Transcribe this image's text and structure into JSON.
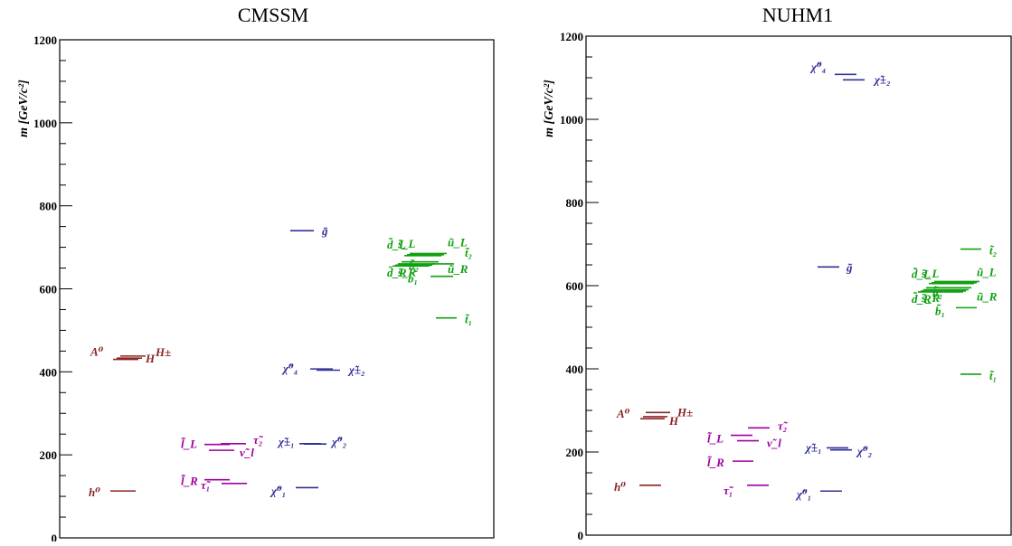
{
  "colors": {
    "higgs": "#8b2525",
    "slepton": "#a000a0",
    "gaugino": "#30309a",
    "squark": "#10a010",
    "axis": "#000000"
  },
  "chart_data": [
    {
      "type": "mass-spectrum",
      "title": "CMSSM",
      "ylabel": "m [GeV/c²]",
      "ylim": [
        0,
        1200
      ],
      "yticks": [
        "0",
        "200",
        "400",
        "600",
        "800",
        "1000",
        "1200"
      ],
      "particles": [
        {
          "label": "h⁰",
          "group": "higgs",
          "mass": 113
        },
        {
          "label": "A⁰",
          "group": "higgs",
          "mass": 430
        },
        {
          "label": "H",
          "group": "higgs",
          "mass": 433
        },
        {
          "label": "H±",
          "group": "higgs",
          "mass": 438
        },
        {
          "label": "l̃_R",
          "group": "slepton",
          "mass": 140
        },
        {
          "label": "τ̃₁",
          "group": "slepton",
          "mass": 131
        },
        {
          "label": "l̃_L",
          "group": "slepton",
          "mass": 225
        },
        {
          "label": "ν̃_l",
          "group": "slepton",
          "mass": 211
        },
        {
          "label": "τ̃₂",
          "group": "slepton",
          "mass": 227
        },
        {
          "label": "χ̃⁰₁",
          "group": "gaugino",
          "mass": 121
        },
        {
          "label": "χ̃±₁",
          "group": "gaugino",
          "mass": 227
        },
        {
          "label": "χ̃⁰₂",
          "group": "gaugino",
          "mass": 226
        },
        {
          "label": "χ̃⁰₄",
          "group": "gaugino",
          "mass": 407
        },
        {
          "label": "χ̃±₂",
          "group": "gaugino",
          "mass": 404
        },
        {
          "label": "g̃",
          "group": "gaugino",
          "mass": 740
        },
        {
          "label": "t̃₁",
          "group": "squark",
          "mass": 530
        },
        {
          "label": "b̃₁",
          "group": "squark",
          "mass": 630
        },
        {
          "label": "t̃₂",
          "group": "squark",
          "mass": 660
        },
        {
          "label": "d̃_R",
          "group": "squark",
          "mass": 655
        },
        {
          "label": "s̃_R",
          "group": "squark",
          "mass": 657
        },
        {
          "label": "ũ_R",
          "group": "squark",
          "mass": 660
        },
        {
          "label": "b̃₂",
          "group": "squark",
          "mass": 665
        },
        {
          "label": "d̃_L",
          "group": "squark",
          "mass": 680
        },
        {
          "label": "s̃_L",
          "group": "squark",
          "mass": 682
        },
        {
          "label": "ũ_L",
          "group": "squark",
          "mass": 685
        }
      ]
    },
    {
      "type": "mass-spectrum",
      "title": "NUHM1",
      "ylabel": "m [GeV/c²]",
      "ylim": [
        0,
        1200
      ],
      "yticks": [
        "0",
        "200",
        "400",
        "600",
        "800",
        "1000",
        "1200"
      ],
      "particles": [
        {
          "label": "h⁰",
          "group": "higgs",
          "mass": 120
        },
        {
          "label": "A⁰",
          "group": "higgs",
          "mass": 280
        },
        {
          "label": "H",
          "group": "higgs",
          "mass": 285
        },
        {
          "label": "H±",
          "group": "higgs",
          "mass": 295
        },
        {
          "label": "τ̃₁",
          "group": "slepton",
          "mass": 120
        },
        {
          "label": "l̃_R",
          "group": "slepton",
          "mass": 178
        },
        {
          "label": "l̃_L",
          "group": "slepton",
          "mass": 240
        },
        {
          "label": "ν̃_l",
          "group": "slepton",
          "mass": 227
        },
        {
          "label": "τ̃₂",
          "group": "slepton",
          "mass": 258
        },
        {
          "label": "χ̃⁰₁",
          "group": "gaugino",
          "mass": 106
        },
        {
          "label": "χ̃±₁",
          "group": "gaugino",
          "mass": 210
        },
        {
          "label": "χ̃⁰₂",
          "group": "gaugino",
          "mass": 205
        },
        {
          "label": "g̃",
          "group": "gaugino",
          "mass": 645
        },
        {
          "label": "χ̃⁰₄",
          "group": "gaugino",
          "mass": 1108
        },
        {
          "label": "χ̃±₂",
          "group": "gaugino",
          "mass": 1095
        },
        {
          "label": "t̃₁",
          "group": "squark",
          "mass": 387
        },
        {
          "label": "b̃₁",
          "group": "squark",
          "mass": 547
        },
        {
          "label": "d̃_R",
          "group": "squark",
          "mass": 585
        },
        {
          "label": "s̃_R",
          "group": "squark",
          "mass": 587
        },
        {
          "label": "ũ_R",
          "group": "squark",
          "mass": 590
        },
        {
          "label": "b̃₂",
          "group": "squark",
          "mass": 595
        },
        {
          "label": "d̃_L",
          "group": "squark",
          "mass": 605
        },
        {
          "label": "s̃_L",
          "group": "squark",
          "mass": 607
        },
        {
          "label": "ũ_L",
          "group": "squark",
          "mass": 610
        },
        {
          "label": "t̃₂",
          "group": "squark",
          "mass": 688
        }
      ]
    }
  ]
}
